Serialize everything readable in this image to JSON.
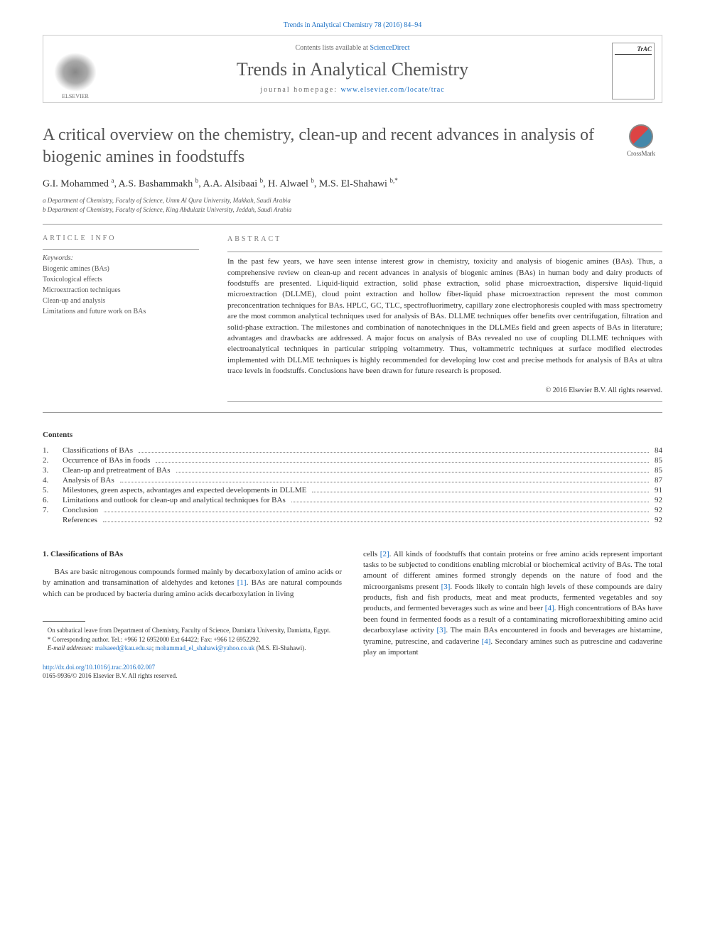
{
  "journal_ref": "Trends in Analytical Chemistry 78 (2016) 84–94",
  "header": {
    "contents_available": "Contents lists available at ",
    "sciencedirect": "ScienceDirect",
    "journal_name": "Trends in Analytical Chemistry",
    "homepage_label": "journal homepage: ",
    "homepage_url": "www.elsevier.com/locate/trac",
    "publisher_logo_text": "ELSEVIER",
    "journal_cover_text": "TrAC"
  },
  "crossmark": "CrossMark",
  "title": "A critical overview on the chemistry, clean-up and recent advances in analysis of biogenic amines in foodstuffs",
  "authors_html": "G.I. Mohammed <sup>a</sup>, A.S. Bashammakh <sup>b</sup>, A.A. Alsibaai <sup>b</sup>, H. Alwael <sup>b</sup>, M.S. El-Shahawi <sup>b,*</sup>",
  "affiliations": [
    "a Department of Chemistry, Faculty of Science, Umm Al Qura University, Makkah, Saudi Arabia",
    "b Department of Chemistry, Faculty of Science, King Abdulaziz University, Jeddah, Saudi Arabia"
  ],
  "article_info": {
    "heading": "ARTICLE INFO",
    "keywords_label": "Keywords:",
    "keywords": [
      "Biogenic amines (BAs)",
      "Toxicological effects",
      "Microextraction techniques",
      "Clean-up and analysis",
      "Limitations and future work on BAs"
    ]
  },
  "abstract": {
    "heading": "ABSTRACT",
    "text": "In the past few years, we have seen intense interest grow in chemistry, toxicity and analysis of biogenic amines (BAs). Thus, a comprehensive review on clean-up and recent advances in analysis of biogenic amines (BAs) in human body and dairy products of foodstuffs are presented. Liquid-liquid extraction, solid phase extraction, solid phase microextraction, dispersive liquid-liquid microextraction (DLLME), cloud point extraction and hollow fiber-liquid phase microextraction represent the most common preconcentration techniques for BAs. HPLC, GC, TLC, spectrofluorimetry, capillary zone electrophoresis coupled with mass spectrometry are the most common analytical techniques used for analysis of BAs. DLLME techniques offer benefits over centrifugation, filtration and solid-phase extraction. The milestones and combination of nanotechniques in the DLLMEs field and green aspects of BAs in literature; advantages and drawbacks are addressed. A major focus on analysis of BAs revealed no use of coupling DLLME techniques with electroanalytical techniques in particular stripping voltammetry. Thus, voltammetric techniques at surface modified electrodes implemented with DLLME techniques is highly recommended for developing low cost and precise methods for analysis of BAs at ultra trace levels in foodstuffs. Conclusions have been drawn for future research is proposed.",
    "copyright": "© 2016 Elsevier B.V. All rights reserved."
  },
  "contents": {
    "heading": "Contents",
    "items": [
      {
        "num": "1.",
        "title": "Classifications of BAs",
        "page": "84"
      },
      {
        "num": "2.",
        "title": "Occurrence of BAs in foods",
        "page": "85"
      },
      {
        "num": "3.",
        "title": "Clean-up and pretreatment of BAs",
        "page": "85"
      },
      {
        "num": "4.",
        "title": "Analysis of BAs",
        "page": "87"
      },
      {
        "num": "5.",
        "title": "Milestones, green aspects, advantages and expected developments in DLLME",
        "page": "91"
      },
      {
        "num": "6.",
        "title": "Limitations and outlook for clean-up and analytical techniques for BAs",
        "page": "92"
      },
      {
        "num": "7.",
        "title": "Conclusion",
        "page": "92"
      },
      {
        "num": "",
        "title": "References",
        "page": "92"
      }
    ]
  },
  "body": {
    "section1_heading": "1. Classifications of BAs",
    "col1_p1_a": "BAs are basic nitrogenous compounds formed mainly by decarboxylation of amino acids or by amination and transamination of aldehydes and ketones ",
    "ref1": "[1]",
    "col1_p1_b": ". BAs are natural compounds which can be produced by bacteria during amino acids decarboxylation in living",
    "col2_p1_a": "cells ",
    "ref2": "[2]",
    "col2_p1_b": ". All kinds of foodstuffs that contain proteins or free amino acids represent important tasks to be subjected to conditions enabling microbial or biochemical activity of BAs. The total amount of different amines formed strongly depends on the nature of food and the microorganisms present ",
    "ref3": "[3]",
    "col2_p1_c": ". Foods likely to contain high levels of these compounds are dairy products, fish and fish products, meat and meat products, fermented vegetables and soy products, and fermented beverages such as wine and beer ",
    "ref4": "[4]",
    "col2_p1_d": ". High concentrations of BAs have been found in fermented foods as a result of a contaminating microfloraexhibiting amino acid decarboxylase activity ",
    "ref3b": "[3]",
    "col2_p1_e": ". The main BAs encountered in foods and beverages are histamine, tyramine, putrescine, and cadaverine ",
    "ref4b": "[4]",
    "col2_p1_f": ". Secondary amines such as putrescine and cadaverine play an important"
  },
  "footnotes": {
    "sabbatical": "On sabbatical leave from Department of Chemistry, Faculty of Science, Damiatta University, Damiatta, Egypt.",
    "corresponding": "* Corresponding author. Tel.: +966 12 6952000 Ext 64422; Fax: +966 12 6952292.",
    "email_label": "E-mail addresses: ",
    "email1": "malsaeed@kau.edu.sa",
    "email_sep": "; ",
    "email2": "mohammad_el_shahawi@yahoo.co.uk",
    "email_suffix": " (M.S. El-Shahawi)."
  },
  "doi": {
    "url": "http://dx.doi.org/10.1016/j.trac.2016.02.007",
    "issn_line": "0165-9936/© 2016 Elsevier B.V. All rights reserved."
  },
  "colors": {
    "link": "#1a6fc4",
    "heading_gray": "#555555",
    "text": "#333333",
    "rule": "#999999"
  }
}
